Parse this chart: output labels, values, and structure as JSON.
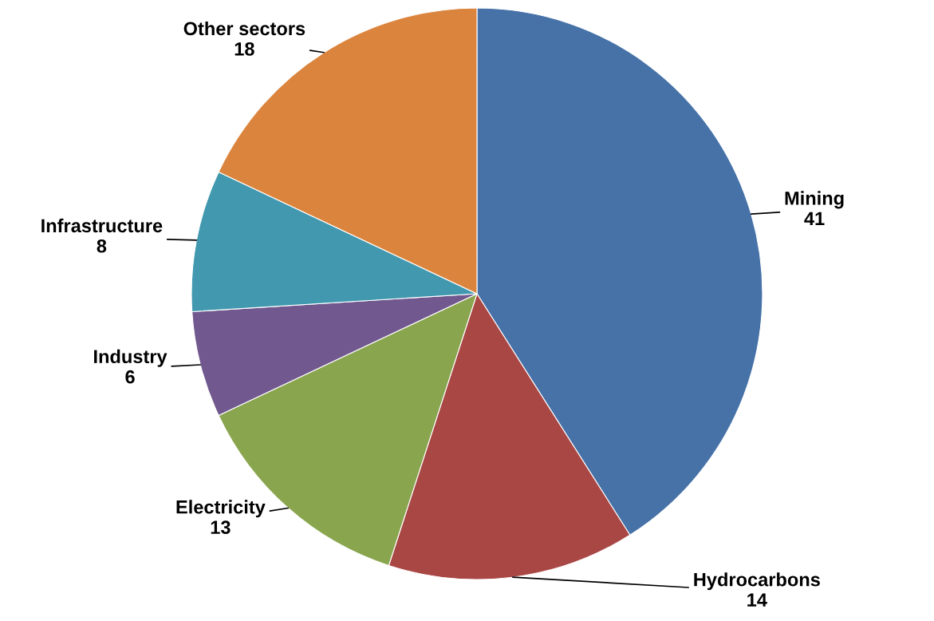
{
  "chart_data": {
    "type": "pie",
    "categories": [
      "Mining",
      "Hydrocarbons",
      "Electricity",
      "Industry",
      "Infrastructure",
      "Other sectors"
    ],
    "values": [
      41,
      14,
      13,
      6,
      8,
      18
    ],
    "colors": [
      "#4672a8",
      "#a94745",
      "#89a54e",
      "#71588f",
      "#4198af",
      "#db843d"
    ],
    "data_labels": true
  }
}
